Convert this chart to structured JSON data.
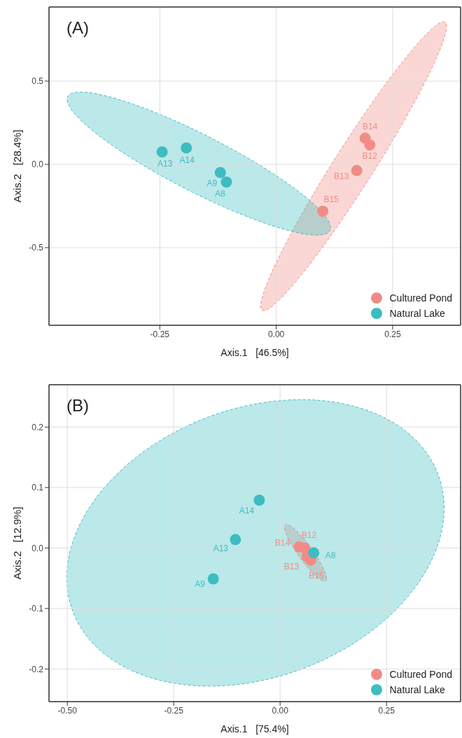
{
  "chart_data": [
    {
      "type": "scatter",
      "title": "(A)",
      "xlabel": "Axis.1   [46.5%]",
      "ylabel": "Axis.2   [28.4%]",
      "xlim": [
        -0.488,
        0.396
      ],
      "ylim": [
        -0.966,
        0.945
      ],
      "xticks": [
        {
          "value": -0.25,
          "label": "-0.25"
        },
        {
          "value": 0,
          "label": "0.00"
        },
        {
          "value": 0.25,
          "label": "0.25"
        }
      ],
      "yticks": [
        {
          "value": -0.5,
          "label": "-0.5"
        },
        {
          "value": 0,
          "label": "0.0"
        },
        {
          "value": 0.5,
          "label": "0.5"
        }
      ],
      "grid": true,
      "legend": "bottom right",
      "marker": "circle",
      "series": [
        {
          "name": "Cultured Pond",
          "color": "#f28b85",
          "x": [
            0.191,
            0.201,
            0.173,
            0.1
          ],
          "values": [
            0.157,
            0.117,
            -0.037,
            -0.281
          ],
          "value_labels": [
            "B14",
            "B12",
            "B13",
            "B15"
          ]
        },
        {
          "name": "Natural Lake",
          "color": "#3dbdc1",
          "x": [
            -0.245,
            -0.193,
            -0.12,
            -0.107
          ],
          "values": [
            0.075,
            0.099,
            -0.049,
            -0.106
          ],
          "value_labels": [
            "A13",
            "A14",
            "A9",
            "A8"
          ]
        }
      ]
    },
    {
      "type": "scatter",
      "title": "(B)",
      "xlabel": "Axis.1   [75.4%]",
      "ylabel": "Axis.2   [12.9%]",
      "xlim": [
        -0.543,
        0.424
      ],
      "ylim": [
        -0.254,
        0.27
      ],
      "xticks": [
        {
          "value": -0.5,
          "label": "-0.50"
        },
        {
          "value": -0.25,
          "label": "-0.25"
        },
        {
          "value": 0,
          "label": "0.00"
        },
        {
          "value": 0.25,
          "label": "0.25"
        }
      ],
      "yticks": [
        -0.2,
        -0.1,
        {
          "value": 0,
          "label": "0.0"
        },
        0.1,
        0.2
      ],
      "grid": true,
      "legend": "bottom right",
      "marker": "circle",
      "series": [
        {
          "name": "Cultured Pond",
          "color": "#f28b85",
          "x": [
            0.045,
            0.058,
            0.063,
            0.072
          ],
          "values": [
            0.002,
            0.0,
            -0.014,
            -0.02
          ],
          "value_labels": [
            "B14",
            "B12",
            "B13",
            "B15"
          ]
        },
        {
          "name": "Natural Lake",
          "color": "#3dbdc1",
          "x": [
            -0.049,
            -0.105,
            -0.157,
            0.079
          ],
          "values": [
            0.079,
            0.014,
            -0.051,
            -0.008
          ],
          "value_labels": [
            "A14",
            "A13",
            "A9",
            "A8"
          ]
        }
      ]
    }
  ]
}
